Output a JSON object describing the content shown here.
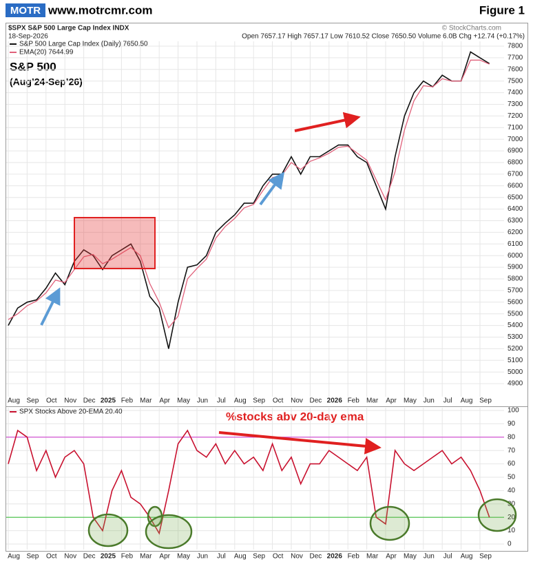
{
  "logo": "MOTR",
  "site": "www.motrcmr.com",
  "figure": "Figure 1",
  "chart_data": [
    {
      "type": "line",
      "title": "$SPX S&P 500 Large Cap Index INDX",
      "date": "18-Sep-2026",
      "quote": "Open 7657.17 High 7657.17 Low 7610.52 Close 7650.50 Volume 6.0B Chg +12.74 (+0.17%)",
      "source": "© StockCharts.com",
      "annotations": [
        "S&P 500",
        "(Aug’24-Sep’26)"
      ],
      "categories": [
        "Aug",
        null,
        "Sep",
        null,
        "Oct",
        null,
        "Nov",
        null,
        "Dec",
        null,
        "2025",
        null,
        "Feb",
        null,
        "Mar",
        null,
        "Apr",
        null,
        "May",
        null,
        "Jun",
        null,
        "Jul",
        null,
        "Aug",
        null,
        "Sep",
        null,
        "Oct",
        null,
        "Nov",
        null,
        "Dec",
        null,
        "2026",
        null,
        "Feb",
        null,
        "Mar",
        null,
        "Apr",
        null,
        "May",
        null,
        "Jun",
        null,
        "Jul",
        null,
        "Aug",
        null,
        "Sep",
        null
      ],
      "series": [
        {
          "name": "S&P 500 Large Cap Index (Daily) 7650.50",
          "color": "#111111",
          "values": [
            5400,
            5550,
            5600,
            5620,
            5720,
            5850,
            5750,
            5950,
            6050,
            6000,
            5880,
            6000,
            6050,
            6100,
            5950,
            5650,
            5550,
            5200,
            5600,
            5900,
            5920,
            6000,
            6200,
            6280,
            6350,
            6450,
            6450,
            6600,
            6700,
            6700,
            6850,
            6700,
            6850,
            6850,
            6900,
            6950,
            6950,
            6850,
            6800,
            6600,
            6400,
            6850,
            7200,
            7400,
            7500,
            7450,
            7550,
            7500,
            7500,
            7750,
            7700,
            7650
          ]
        },
        {
          "name": "EMA(20) 7644.99",
          "color": "#e0607a",
          "values": [
            5450,
            5500,
            5570,
            5610,
            5680,
            5790,
            5770,
            5880,
            5990,
            6010,
            5930,
            5970,
            6020,
            6070,
            6000,
            5760,
            5600,
            5380,
            5480,
            5800,
            5890,
            5970,
            6150,
            6250,
            6320,
            6410,
            6440,
            6560,
            6670,
            6690,
            6800,
            6740,
            6810,
            6840,
            6880,
            6930,
            6940,
            6880,
            6820,
            6650,
            6480,
            6720,
            7080,
            7330,
            7460,
            7450,
            7520,
            7500,
            7500,
            7680,
            7680,
            7645
          ]
        }
      ],
      "ylim": [
        4800,
        7900
      ],
      "yticks": [
        4900,
        5000,
        5100,
        5200,
        5300,
        5400,
        5500,
        5600,
        5700,
        5800,
        5900,
        6000,
        6100,
        6200,
        6300,
        6400,
        6500,
        6600,
        6700,
        6800,
        6900,
        7000,
        7100,
        7200,
        7300,
        7400,
        7500,
        7600,
        7700,
        7800
      ],
      "grid": true
    },
    {
      "type": "line",
      "annotations": [
        "%stocks abv 20-day ema"
      ],
      "categories": [
        "Aug",
        null,
        "Sep",
        null,
        "Oct",
        null,
        "Nov",
        null,
        "Dec",
        null,
        "2025",
        null,
        "Feb",
        null,
        "Mar",
        null,
        "Apr",
        null,
        "May",
        null,
        "Jun",
        null,
        "Jul",
        null,
        "Aug",
        null,
        "Sep",
        null,
        "Oct",
        null,
        "Nov",
        null,
        "Dec",
        null,
        "2026",
        null,
        "Feb",
        null,
        "Mar",
        null,
        "Apr",
        null,
        "May",
        null,
        "Jun",
        null,
        "Jul",
        null,
        "Aug",
        null,
        "Sep",
        null
      ],
      "series": [
        {
          "name": "SPX Stocks Above 20-EMA 20.40",
          "color": "#c8102e",
          "values": [
            60,
            85,
            80,
            55,
            70,
            50,
            65,
            70,
            60,
            20,
            10,
            40,
            55,
            35,
            30,
            20,
            8,
            40,
            75,
            85,
            70,
            65,
            75,
            60,
            70,
            60,
            65,
            55,
            75,
            55,
            65,
            45,
            60,
            60,
            70,
            65,
            60,
            55,
            65,
            20,
            15,
            70,
            60,
            55,
            60,
            65,
            70,
            60,
            65,
            55,
            40,
            20
          ]
        }
      ],
      "reference_lines": [
        {
          "value": 80,
          "color": "#d040d0"
        },
        {
          "value": 20,
          "color": "#40c040"
        }
      ],
      "ylim": [
        -5,
        105
      ],
      "yticks": [
        0,
        10,
        20,
        30,
        40,
        50,
        60,
        70,
        80,
        90,
        100
      ],
      "grid": true
    }
  ]
}
